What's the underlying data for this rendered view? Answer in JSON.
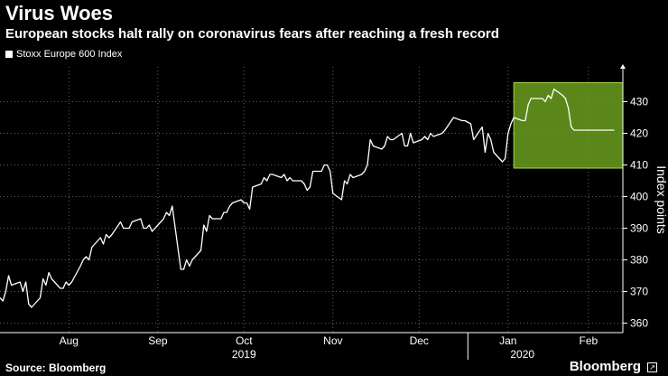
{
  "title": "Virus Woes",
  "subtitle": "European stocks halt rally on coronavirus fears after reaching a fresh record",
  "legend_label": "Stoxx Europe 600 Index",
  "source": "Source: Bloomberg",
  "brand": "Bloomberg",
  "colors": {
    "background": "#000000",
    "line": "#ffffff",
    "highlight": "#9acd32"
  },
  "chart_data": {
    "type": "line",
    "title": "Virus Woes",
    "subtitle": "European stocks halt rally on coronavirus fears after reaching a fresh record",
    "ylabel": "Index points",
    "ylim": [
      357,
      441
    ],
    "xlim": [
      "2019-07-22",
      "2020-02-24"
    ],
    "yticks": [
      360,
      370,
      380,
      390,
      400,
      410,
      420,
      430
    ],
    "xticks": [
      {
        "label": "Aug",
        "x": "2019-08-15"
      },
      {
        "label": "Sep",
        "x": "2019-09-15"
      },
      {
        "label": "Oct",
        "x": "2019-10-15"
      },
      {
        "label": "Nov",
        "x": "2019-11-15"
      },
      {
        "label": "Dec",
        "x": "2019-12-15"
      },
      {
        "label": "Jan",
        "x": "2020-01-15"
      },
      {
        "label": "Feb",
        "x": "2020-02-12"
      }
    ],
    "year_labels": [
      {
        "label": "2019",
        "x": "2019-10-15"
      },
      {
        "label": "2020",
        "x": "2020-01-20"
      }
    ],
    "year_divider": "2020-01-01",
    "highlight": {
      "x0": "2020-01-17",
      "x1": "2020-02-24",
      "y0": 409,
      "y1": 436
    },
    "grid": true,
    "series": [
      {
        "name": "Stoxx Europe 600 Index",
        "x": [
          "2019-07-22",
          "2019-07-23",
          "2019-07-24",
          "2019-07-25",
          "2019-07-26",
          "2019-07-29",
          "2019-07-30",
          "2019-07-31",
          "2019-08-01",
          "2019-08-02",
          "2019-08-05",
          "2019-08-06",
          "2019-08-07",
          "2019-08-08",
          "2019-08-09",
          "2019-08-12",
          "2019-08-13",
          "2019-08-14",
          "2019-08-15",
          "2019-08-16",
          "2019-08-19",
          "2019-08-20",
          "2019-08-21",
          "2019-08-22",
          "2019-08-23",
          "2019-08-26",
          "2019-08-27",
          "2019-08-28",
          "2019-08-29",
          "2019-08-30",
          "2019-09-02",
          "2019-09-03",
          "2019-09-04",
          "2019-09-05",
          "2019-09-06",
          "2019-09-09",
          "2019-09-10",
          "2019-09-11",
          "2019-09-12",
          "2019-09-13",
          "2019-09-16",
          "2019-09-17",
          "2019-09-18",
          "2019-09-19",
          "2019-09-20",
          "2019-09-23",
          "2019-09-24",
          "2019-09-25",
          "2019-09-26",
          "2019-09-27",
          "2019-09-30",
          "2019-10-01",
          "2019-10-02",
          "2019-10-03",
          "2019-10-04",
          "2019-10-07",
          "2019-10-08",
          "2019-10-09",
          "2019-10-10",
          "2019-10-11",
          "2019-10-14",
          "2019-10-15",
          "2019-10-16",
          "2019-10-17",
          "2019-10-18",
          "2019-10-21",
          "2019-10-22",
          "2019-10-23",
          "2019-10-24",
          "2019-10-25",
          "2019-10-28",
          "2019-10-29",
          "2019-10-30",
          "2019-10-31",
          "2019-11-01",
          "2019-11-04",
          "2019-11-05",
          "2019-11-06",
          "2019-11-07",
          "2019-11-08",
          "2019-11-11",
          "2019-11-12",
          "2019-11-13",
          "2019-11-14",
          "2019-11-15",
          "2019-11-18",
          "2019-11-19",
          "2019-11-20",
          "2019-11-21",
          "2019-11-22",
          "2019-11-25",
          "2019-11-26",
          "2019-11-27",
          "2019-11-28",
          "2019-11-29",
          "2019-12-02",
          "2019-12-03",
          "2019-12-04",
          "2019-12-05",
          "2019-12-06",
          "2019-12-09",
          "2019-12-10",
          "2019-12-11",
          "2019-12-12",
          "2019-12-13",
          "2019-12-16",
          "2019-12-17",
          "2019-12-18",
          "2019-12-19",
          "2019-12-20",
          "2019-12-23",
          "2019-12-24",
          "2019-12-27",
          "2019-12-30",
          "2019-12-31",
          "2020-01-02",
          "2020-01-03",
          "2020-01-06",
          "2020-01-07",
          "2020-01-08",
          "2020-01-09",
          "2020-01-10",
          "2020-01-13",
          "2020-01-14",
          "2020-01-15",
          "2020-01-16",
          "2020-01-17",
          "2020-01-20",
          "2020-01-21",
          "2020-01-22",
          "2020-01-23",
          "2020-01-24",
          "2020-01-27",
          "2020-01-28",
          "2020-01-29",
          "2020-01-30",
          "2020-01-31",
          "2020-02-03",
          "2020-02-04",
          "2020-02-05",
          "2020-02-06",
          "2020-02-07",
          "2020-02-10",
          "2020-02-11",
          "2020-02-12",
          "2020-02-13",
          "2020-02-14",
          "2020-02-17",
          "2020-02-18",
          "2020-02-19",
          "2020-02-20",
          "2020-02-21"
        ],
        "y": [
          368,
          367,
          370,
          375,
          372,
          373,
          370,
          373,
          366,
          365,
          368,
          374,
          372,
          376,
          374,
          371,
          371,
          373,
          372,
          373,
          378,
          380,
          381,
          380,
          384,
          387,
          385,
          388,
          387,
          388,
          392,
          390,
          390,
          390,
          392,
          393,
          390,
          390,
          391,
          389,
          392,
          393,
          395,
          394,
          397,
          377,
          377,
          380,
          378,
          380,
          383,
          391,
          389,
          394,
          393,
          393,
          395,
          395,
          397,
          398,
          399,
          398,
          398,
          396,
          403,
          404,
          406,
          405,
          407,
          407,
          406,
          407,
          405,
          406,
          405,
          405,
          404,
          402,
          403,
          408,
          408,
          410,
          410,
          408,
          401,
          399,
          405,
          404,
          407,
          406,
          407,
          408,
          410,
          418,
          416,
          415,
          416,
          419,
          418,
          418,
          420,
          416,
          416,
          420,
          417,
          418,
          419,
          418,
          420,
          419,
          420,
          421,
          425,
          424,
          424,
          423,
          418,
          422,
          414,
          420,
          418,
          414,
          411,
          412,
          420,
          423,
          425,
          424,
          424,
          429,
          431,
          431,
          431,
          430,
          432,
          431,
          434,
          432,
          431,
          428,
          422,
          421,
          421,
          421,
          421,
          421,
          421,
          421,
          421,
          421,
          421,
          421
        ]
      }
    ]
  }
}
